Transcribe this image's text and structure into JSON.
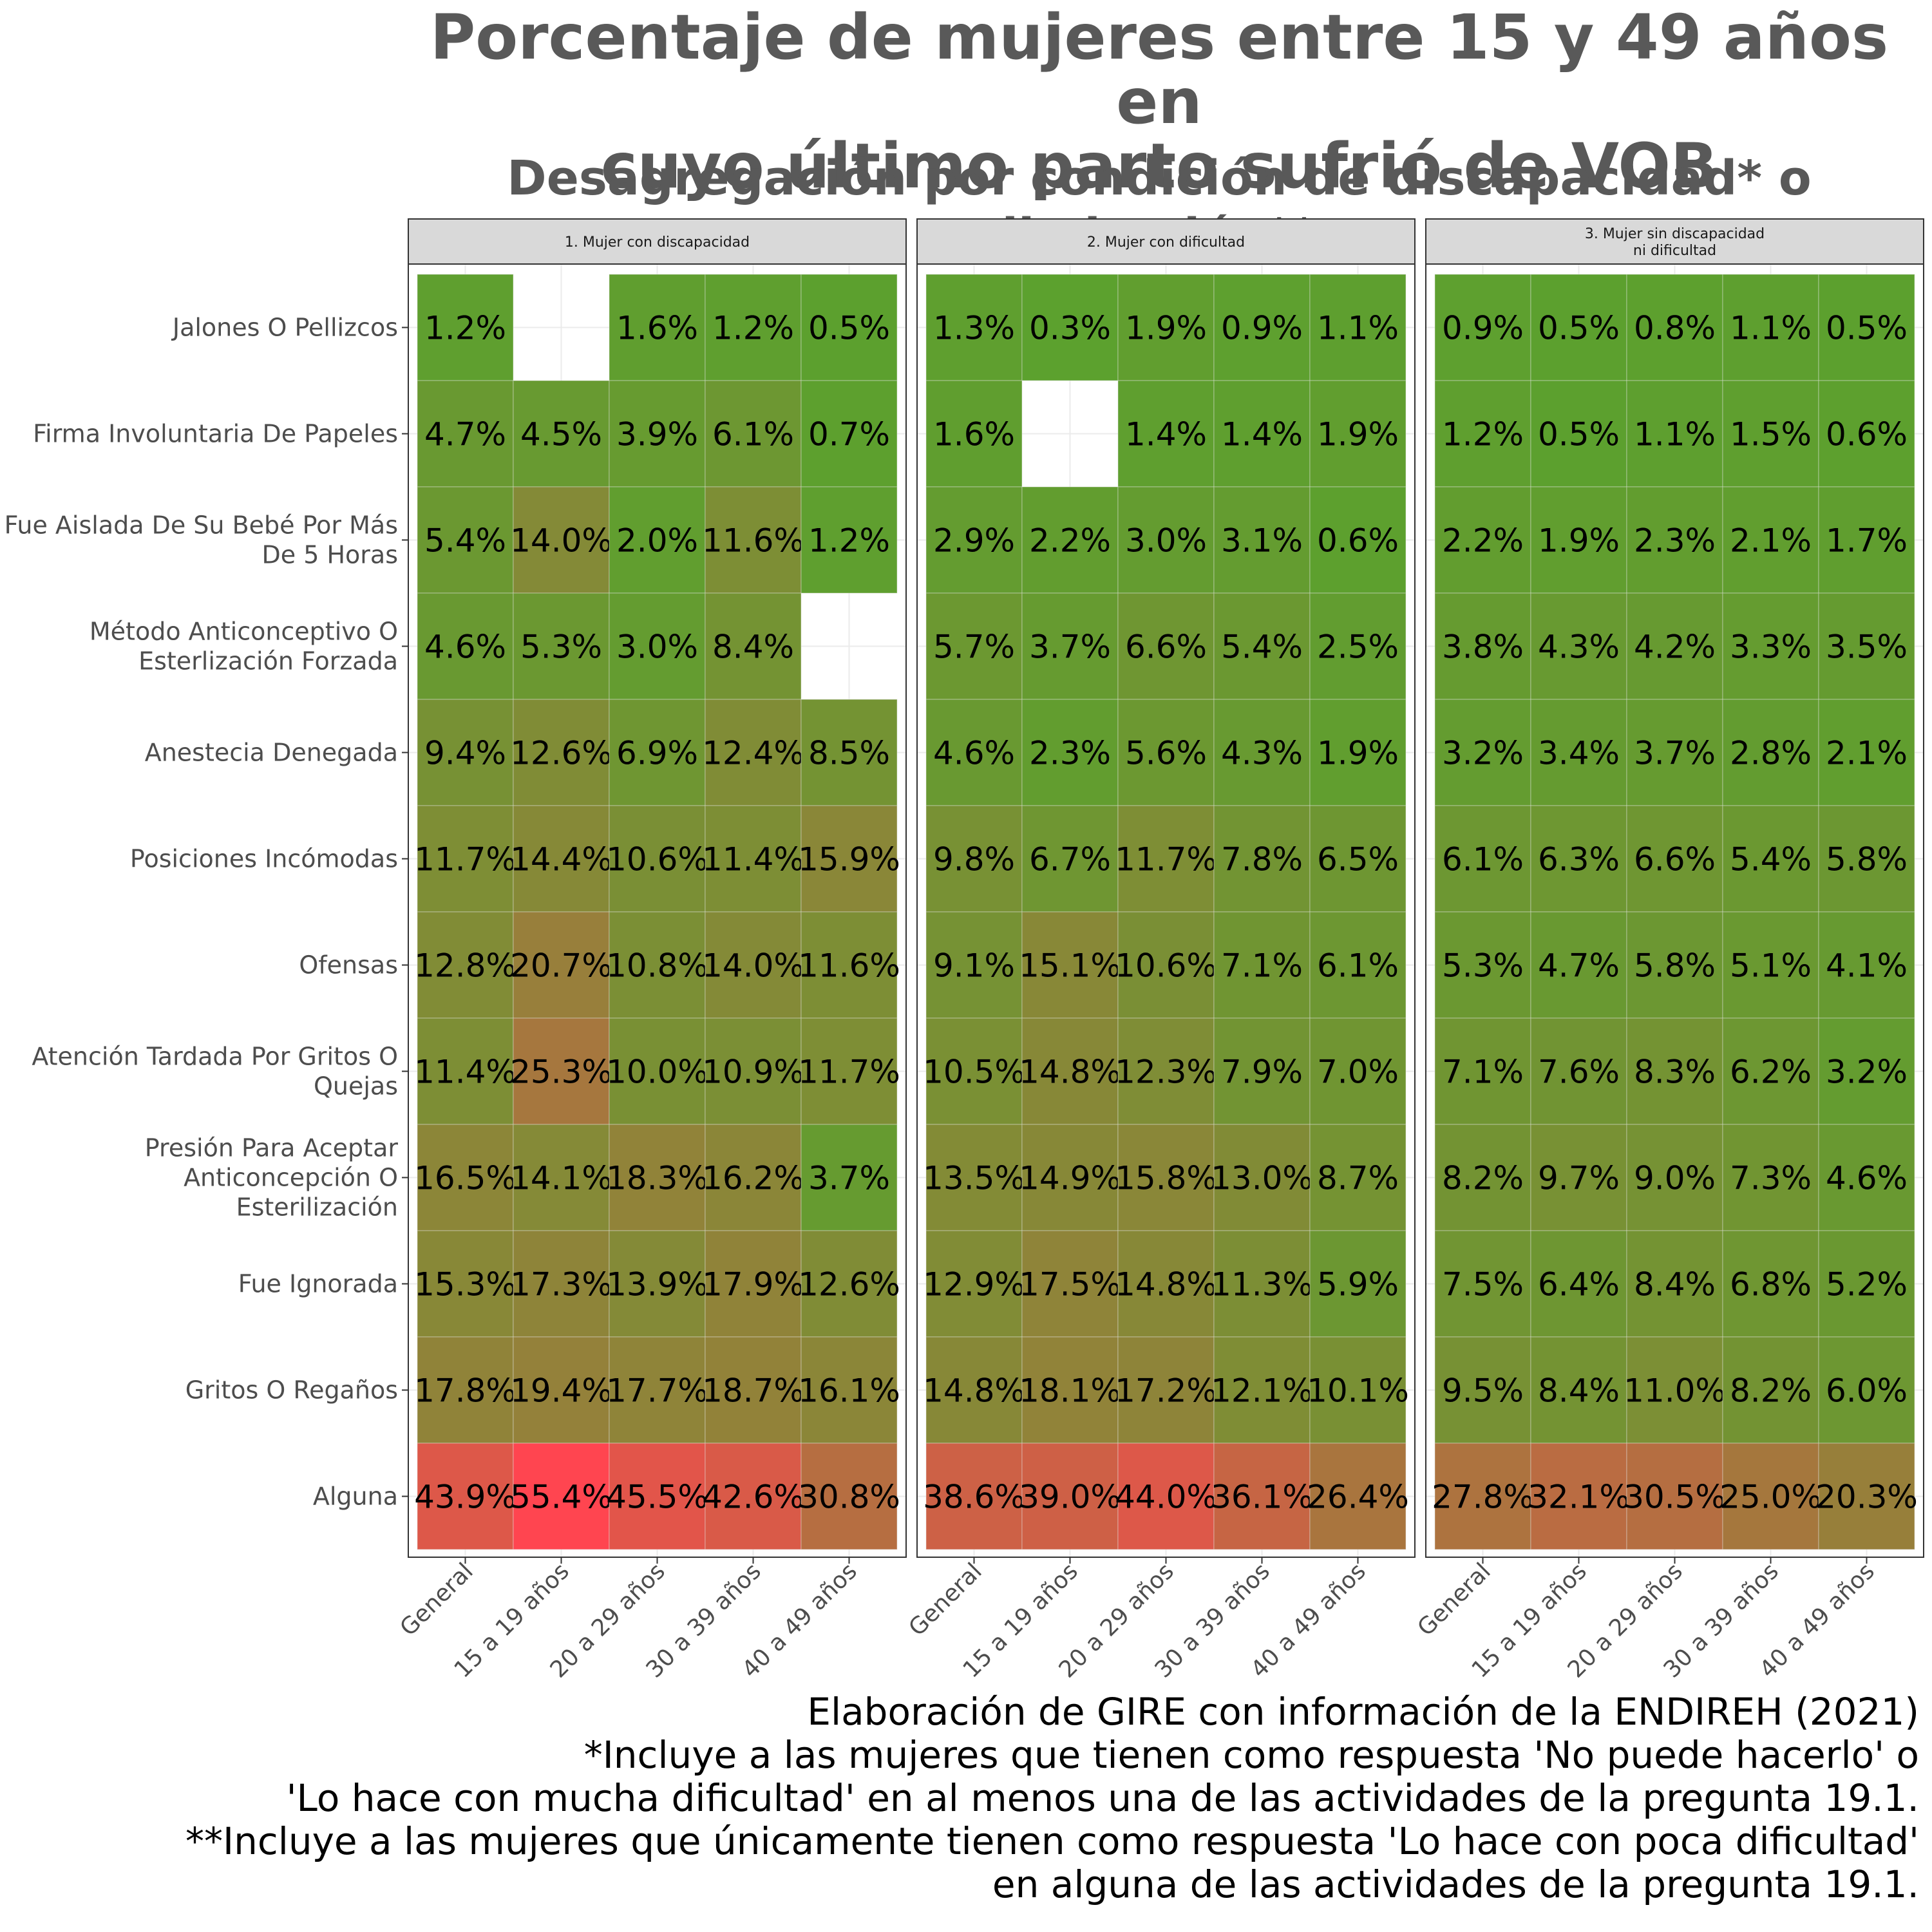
{
  "title": [
    "Porcentaje de mujeres entre 15 y 49 años en",
    "cuyo último parto sufrió de VOB"
  ],
  "subtitle": "Desagregación por condición de discapacidad* o limitación**",
  "caption": [
    "Elaboración de GIRE con información de la ENDIREH (2021)",
    "*Incluye a las mujeres que tienen como respuesta 'No puede hacerlo' o",
    "'Lo hace con mucha dificultad' en al menos una de las actividades de la pregunta 19.1.",
    "**Incluye a las mujeres que únicamente tienen como respuesta 'Lo hace con poca dificultad'",
    "en alguna de las actividades de la pregunta 19.1."
  ],
  "colors": {
    "low": "#5BA12E",
    "high": "#FF4550",
    "strip_fill": "#D9D9D9",
    "panel_border": "#333333",
    "grid": "#EBEBEB"
  },
  "chart_data": {
    "type": "heatmap",
    "color_scale": {
      "low": "#5BA12E",
      "high": "#FF4550",
      "min": 0,
      "max": 55.4
    },
    "x_categories": [
      "General",
      "15 a 19 años",
      "20 a 29 años",
      "30 a 39 años",
      "40 a 49 años"
    ],
    "y_categories": [
      "Jalones O Pellizcos",
      "Firma Involuntaria De Papeles",
      "Fue Aislada De Su Bebé Por Más\nDe 5 Horas",
      "Método Anticonceptivo O\nEsterlización Forzada",
      "Anestecia Denegada",
      "Posiciones Incómodas",
      "Ofensas",
      "Atención Tardada Por Gritos O\nQuejas",
      "Presión Para Aceptar\nAnticoncepción O\nEsterilización",
      "Fue Ignorada",
      "Gritos O Regaños",
      "Alguna"
    ],
    "facets": [
      {
        "label": "1. Mujer con discapacidad",
        "values": [
          [
            1.2,
            null,
            1.6,
            1.2,
            0.5
          ],
          [
            4.7,
            4.5,
            3.9,
            6.1,
            0.7
          ],
          [
            5.4,
            14.0,
            2.0,
            11.6,
            1.2
          ],
          [
            4.6,
            5.3,
            3.0,
            8.4,
            null
          ],
          [
            9.4,
            12.6,
            6.9,
            12.4,
            8.5
          ],
          [
            11.7,
            14.4,
            10.6,
            11.4,
            15.9
          ],
          [
            12.8,
            20.7,
            10.8,
            14.0,
            11.6
          ],
          [
            11.4,
            25.3,
            10.0,
            10.9,
            11.7
          ],
          [
            16.5,
            14.1,
            18.3,
            16.2,
            3.7
          ],
          [
            15.3,
            17.3,
            13.9,
            17.9,
            12.6
          ],
          [
            17.8,
            19.4,
            17.7,
            18.7,
            16.1
          ],
          [
            43.9,
            55.4,
            45.5,
            42.6,
            30.8
          ]
        ]
      },
      {
        "label": "2. Mujer con dificultad",
        "values": [
          [
            1.3,
            0.3,
            1.9,
            0.9,
            1.1
          ],
          [
            1.6,
            null,
            1.4,
            1.4,
            1.9
          ],
          [
            2.9,
            2.2,
            3.0,
            3.1,
            0.6
          ],
          [
            5.7,
            3.7,
            6.6,
            5.4,
            2.5
          ],
          [
            4.6,
            2.3,
            5.6,
            4.3,
            1.9
          ],
          [
            9.8,
            6.7,
            11.7,
            7.8,
            6.5
          ],
          [
            9.1,
            15.1,
            10.6,
            7.1,
            6.1
          ],
          [
            10.5,
            14.8,
            12.3,
            7.9,
            7.0
          ],
          [
            13.5,
            14.9,
            15.8,
            13.0,
            8.7
          ],
          [
            12.9,
            17.5,
            14.8,
            11.3,
            5.9
          ],
          [
            14.8,
            18.1,
            17.2,
            12.1,
            10.1
          ],
          [
            38.6,
            39.0,
            44.0,
            36.1,
            26.4
          ]
        ]
      },
      {
        "label": "3. Mujer sin discapacidad\nni dificultad",
        "values": [
          [
            0.9,
            0.5,
            0.8,
            1.1,
            0.5
          ],
          [
            1.2,
            0.5,
            1.1,
            1.5,
            0.6
          ],
          [
            2.2,
            1.9,
            2.3,
            2.1,
            1.7
          ],
          [
            3.8,
            4.3,
            4.2,
            3.3,
            3.5
          ],
          [
            3.2,
            3.4,
            3.7,
            2.8,
            2.1
          ],
          [
            6.1,
            6.3,
            6.6,
            5.4,
            5.8
          ],
          [
            5.3,
            4.7,
            5.8,
            5.1,
            4.1
          ],
          [
            7.1,
            7.6,
            8.3,
            6.2,
            3.2
          ],
          [
            8.2,
            9.7,
            9.0,
            7.3,
            4.6
          ],
          [
            7.5,
            6.4,
            8.4,
            6.8,
            5.2
          ],
          [
            9.5,
            8.4,
            11.0,
            8.2,
            6.0
          ],
          [
            27.8,
            32.1,
            30.5,
            25.0,
            20.3
          ]
        ]
      }
    ],
    "legend": "none",
    "grid": true,
    "value_format": "one decimal with % suffix"
  }
}
